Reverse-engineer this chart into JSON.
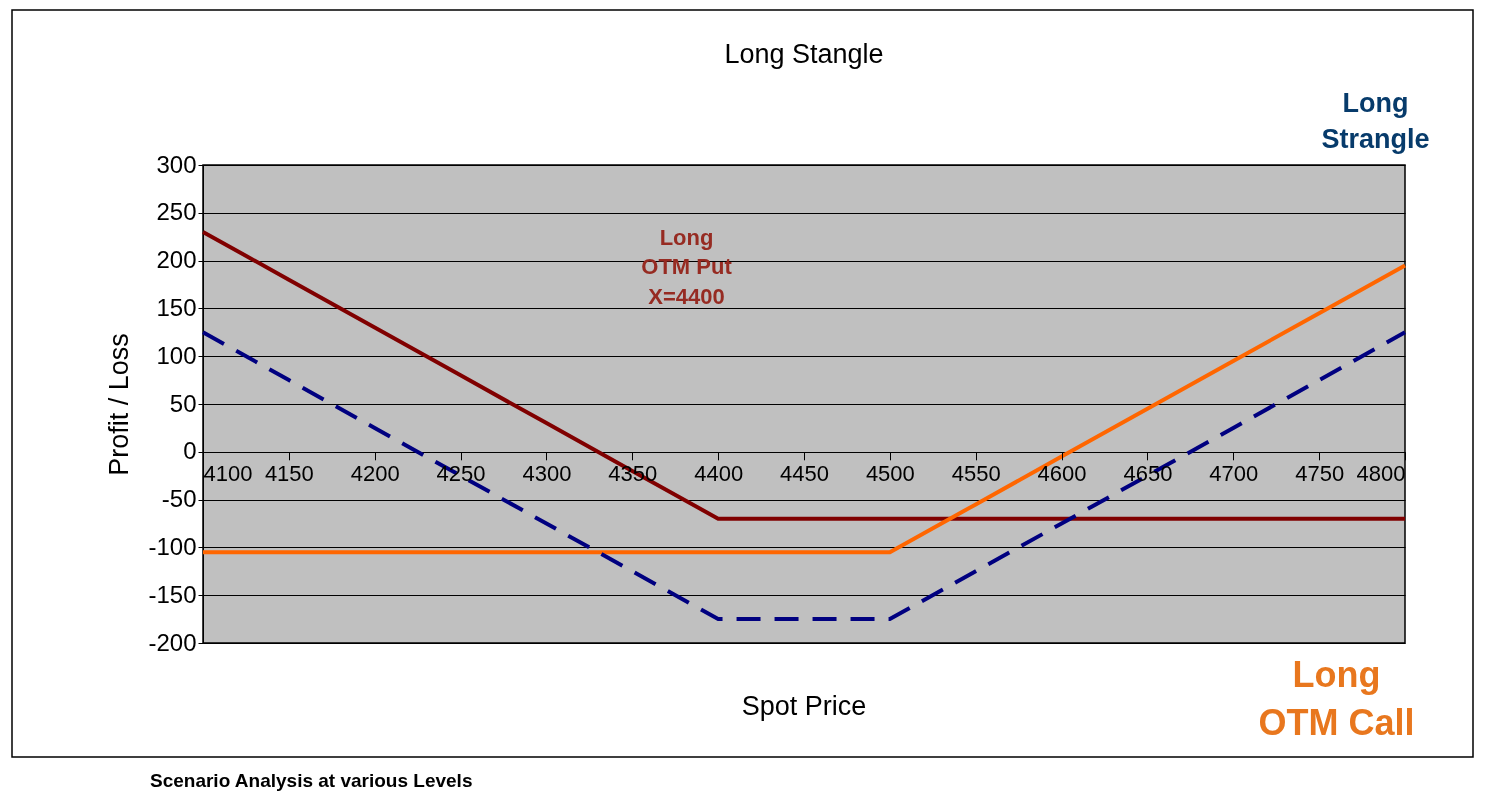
{
  "chart_data": {
    "type": "line",
    "title": "Long Stangle",
    "xlabel": "Spot Price",
    "ylabel": "Profit / Loss",
    "x": [
      4100,
      4150,
      4200,
      4250,
      4300,
      4350,
      4400,
      4450,
      4500,
      4550,
      4600,
      4650,
      4700,
      4750,
      4800
    ],
    "series": [
      {
        "color": "#800000",
        "line_style": "solid",
        "values": [
          230,
          180,
          130,
          80,
          30,
          -20,
          -70,
          -70,
          -70,
          -70,
          -70,
          -70,
          -70,
          -70,
          -70
        ]
      },
      {
        "color": "#ff6600",
        "line_style": "solid",
        "values": [
          -105,
          -105,
          -105,
          -105,
          -105,
          -105,
          -105,
          -105,
          -105,
          -55,
          -5,
          45,
          95,
          145,
          195
        ]
      },
      {
        "color": "#000080",
        "line_style": "dashed",
        "values": [
          125,
          75,
          25,
          -25,
          -75,
          -125,
          -175,
          -175,
          -175,
          -125,
          -75,
          -25,
          25,
          75,
          125
        ]
      }
    ],
    "xlim": [
      4100,
      4800
    ],
    "xticks": [
      4100,
      4150,
      4200,
      4250,
      4300,
      4350,
      4400,
      4450,
      4500,
      4550,
      4600,
      4650,
      4700,
      4750,
      4800
    ],
    "ylim": [
      -200,
      300
    ],
    "yticks": [
      -200,
      -150,
      -100,
      -50,
      0,
      50,
      100,
      150,
      200,
      250,
      300
    ],
    "grid": "y",
    "legend": false,
    "marker": "none",
    "annotations": [
      "Long\nOTM Put\nX=4400",
      "Long\nStrangle",
      "Long\nOTM Call",
      "Scenario Analysis at various Levels"
    ]
  }
}
